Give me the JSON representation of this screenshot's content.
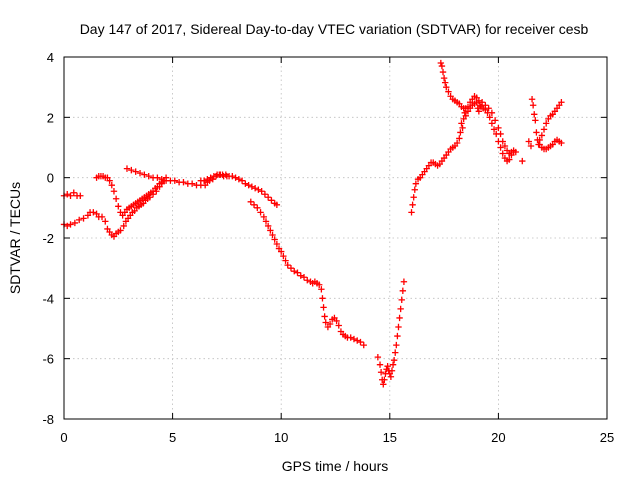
{
  "chart_data": {
    "type": "scatter",
    "title": "Day 147 of 2017, Sidereal Day-to-day VTEC variation (SDTVAR) for receiver cesb",
    "xlabel": "GPS time / hours",
    "ylabel": "SDTVAR / TECUs",
    "xlim": [
      0,
      25
    ],
    "ylim": [
      -8,
      4
    ],
    "x_ticks": [
      0,
      5,
      10,
      15,
      20,
      25
    ],
    "y_ticks": [
      -8,
      -6,
      -4,
      -2,
      0,
      2,
      4
    ],
    "grid": true,
    "marker": "+",
    "color": "#ff0000",
    "series": [
      {
        "points": [
          [
            0.0,
            -0.6
          ],
          [
            0.15,
            -0.55
          ],
          [
            0.3,
            -0.6
          ],
          [
            0.45,
            -0.5
          ],
          [
            0.6,
            -0.6
          ],
          [
            0.75,
            -0.6
          ],
          [
            0.0,
            -1.55
          ],
          [
            0.15,
            -1.6
          ],
          [
            0.3,
            -1.55
          ],
          [
            0.5,
            -1.5
          ],
          [
            0.7,
            -1.4
          ],
          [
            0.9,
            -1.35
          ],
          [
            1.1,
            -1.25
          ],
          [
            1.2,
            -1.15
          ],
          [
            1.35,
            -1.15
          ],
          [
            1.5,
            -1.2
          ],
          [
            1.6,
            -1.3
          ],
          [
            1.75,
            -1.3
          ],
          [
            1.9,
            -1.45
          ],
          [
            2.0,
            -1.7
          ],
          [
            2.1,
            -1.8
          ],
          [
            2.2,
            -1.9
          ],
          [
            2.3,
            -1.95
          ],
          [
            2.4,
            -1.85
          ],
          [
            2.5,
            -1.8
          ],
          [
            2.6,
            -1.75
          ],
          [
            2.75,
            -1.6
          ],
          [
            2.85,
            -1.45
          ],
          [
            2.95,
            -1.35
          ],
          [
            3.05,
            -1.25
          ],
          [
            3.15,
            -1.15
          ],
          [
            3.25,
            -1.1
          ],
          [
            3.35,
            -1.0
          ],
          [
            3.45,
            -0.95
          ],
          [
            3.55,
            -0.9
          ],
          [
            3.65,
            -0.85
          ],
          [
            3.75,
            -0.75
          ],
          [
            3.85,
            -0.7
          ],
          [
            3.95,
            -0.65
          ],
          [
            4.1,
            -0.55
          ],
          [
            4.25,
            -0.45
          ],
          [
            4.4,
            -0.3
          ],
          [
            4.5,
            -0.2
          ],
          [
            4.6,
            -0.1
          ],
          [
            4.7,
            0.0
          ],
          [
            1.5,
            0.0
          ],
          [
            1.6,
            0.05
          ],
          [
            1.7,
            0.05
          ],
          [
            1.8,
            0.05
          ],
          [
            1.9,
            0.0
          ],
          [
            2.0,
            0.0
          ],
          [
            2.1,
            -0.1
          ],
          [
            2.2,
            -0.25
          ],
          [
            2.3,
            -0.45
          ],
          [
            2.4,
            -0.7
          ],
          [
            2.5,
            -0.95
          ],
          [
            2.6,
            -1.15
          ],
          [
            2.7,
            -1.25
          ],
          [
            2.8,
            -1.15
          ],
          [
            2.9,
            -1.05
          ],
          [
            3.0,
            -1.0
          ],
          [
            3.1,
            -0.95
          ],
          [
            3.2,
            -0.9
          ],
          [
            3.3,
            -0.85
          ],
          [
            3.4,
            -0.8
          ],
          [
            3.5,
            -0.75
          ],
          [
            3.6,
            -0.7
          ],
          [
            3.7,
            -0.65
          ],
          [
            3.8,
            -0.6
          ],
          [
            3.9,
            -0.55
          ],
          [
            4.0,
            -0.5
          ],
          [
            4.1,
            -0.45
          ],
          [
            4.2,
            -0.35
          ],
          [
            4.3,
            -0.3
          ],
          [
            4.4,
            -0.2
          ],
          [
            4.5,
            -0.15
          ],
          [
            2.9,
            0.3
          ],
          [
            3.1,
            0.25
          ],
          [
            3.3,
            0.2
          ],
          [
            3.5,
            0.15
          ],
          [
            3.7,
            0.1
          ],
          [
            3.9,
            0.05
          ],
          [
            4.1,
            0.0
          ],
          [
            4.3,
            0.0
          ],
          [
            4.5,
            -0.05
          ],
          [
            4.7,
            -0.1
          ],
          [
            4.9,
            -0.1
          ],
          [
            5.1,
            -0.1
          ],
          [
            5.3,
            -0.15
          ],
          [
            5.5,
            -0.15
          ],
          [
            5.7,
            -0.2
          ],
          [
            5.9,
            -0.2
          ],
          [
            6.1,
            -0.25
          ],
          [
            6.3,
            -0.25
          ],
          [
            6.5,
            -0.25
          ],
          [
            6.6,
            -0.15
          ],
          [
            6.7,
            -0.1
          ],
          [
            6.85,
            -0.05
          ],
          [
            7.0,
            0.05
          ],
          [
            7.15,
            0.1
          ],
          [
            7.3,
            0.1
          ],
          [
            7.45,
            0.1
          ],
          [
            7.6,
            0.05
          ],
          [
            7.75,
            0.05
          ],
          [
            7.9,
            0.0
          ],
          [
            8.05,
            -0.05
          ],
          [
            8.2,
            -0.1
          ],
          [
            8.35,
            -0.2
          ],
          [
            8.5,
            -0.25
          ],
          [
            8.65,
            -0.3
          ],
          [
            8.8,
            -0.35
          ],
          [
            8.95,
            -0.4
          ],
          [
            9.1,
            -0.45
          ],
          [
            9.25,
            -0.55
          ],
          [
            9.4,
            -0.65
          ],
          [
            9.55,
            -0.75
          ],
          [
            9.7,
            -0.85
          ],
          [
            9.8,
            -0.9
          ],
          [
            6.3,
            -0.1
          ],
          [
            6.45,
            -0.1
          ],
          [
            6.6,
            -0.05
          ],
          [
            6.75,
            0.0
          ],
          [
            6.9,
            0.05
          ],
          [
            7.05,
            0.1
          ],
          [
            7.2,
            0.1
          ],
          [
            7.35,
            0.05
          ],
          [
            7.5,
            0.05
          ],
          [
            8.6,
            -0.8
          ],
          [
            8.75,
            -0.9
          ],
          [
            8.9,
            -1.0
          ],
          [
            9.05,
            -1.15
          ],
          [
            9.2,
            -1.3
          ],
          [
            9.3,
            -1.45
          ],
          [
            9.4,
            -1.6
          ],
          [
            9.5,
            -1.75
          ],
          [
            9.6,
            -1.9
          ],
          [
            9.7,
            -2.05
          ],
          [
            9.8,
            -2.2
          ],
          [
            9.9,
            -2.35
          ],
          [
            10.0,
            -2.45
          ],
          [
            10.1,
            -2.6
          ],
          [
            10.2,
            -2.75
          ],
          [
            10.3,
            -2.9
          ],
          [
            10.45,
            -3.0
          ],
          [
            10.6,
            -3.1
          ],
          [
            10.75,
            -3.15
          ],
          [
            10.9,
            -3.25
          ],
          [
            11.05,
            -3.3
          ],
          [
            11.2,
            -3.4
          ],
          [
            11.35,
            -3.45
          ],
          [
            11.45,
            -3.5
          ],
          [
            11.55,
            -3.45
          ],
          [
            11.65,
            -3.5
          ],
          [
            11.75,
            -3.55
          ],
          [
            11.85,
            -3.7
          ],
          [
            11.9,
            -4.0
          ],
          [
            11.95,
            -4.3
          ],
          [
            12.0,
            -4.6
          ],
          [
            12.05,
            -4.8
          ],
          [
            12.15,
            -4.95
          ],
          [
            12.25,
            -4.85
          ],
          [
            12.35,
            -4.7
          ],
          [
            12.45,
            -4.65
          ],
          [
            12.55,
            -4.75
          ],
          [
            12.65,
            -4.9
          ],
          [
            12.75,
            -5.1
          ],
          [
            12.85,
            -5.2
          ],
          [
            12.95,
            -5.25
          ],
          [
            13.05,
            -5.3
          ],
          [
            13.2,
            -5.3
          ],
          [
            13.35,
            -5.35
          ],
          [
            13.5,
            -5.4
          ],
          [
            13.65,
            -5.45
          ],
          [
            13.8,
            -5.55
          ],
          [
            14.45,
            -5.95
          ],
          [
            14.55,
            -6.2
          ],
          [
            14.6,
            -6.45
          ],
          [
            14.65,
            -6.7
          ],
          [
            14.7,
            -6.85
          ],
          [
            14.75,
            -6.7
          ],
          [
            14.8,
            -6.5
          ],
          [
            14.85,
            -6.35
          ],
          [
            14.9,
            -6.25
          ],
          [
            14.95,
            -6.4
          ],
          [
            15.0,
            -6.5
          ],
          [
            15.05,
            -6.6
          ],
          [
            15.1,
            -6.4
          ],
          [
            15.15,
            -6.2
          ],
          [
            15.2,
            -6.05
          ],
          [
            15.25,
            -5.8
          ],
          [
            15.3,
            -5.55
          ],
          [
            15.35,
            -5.25
          ],
          [
            15.4,
            -4.95
          ],
          [
            15.45,
            -4.65
          ],
          [
            15.5,
            -4.35
          ],
          [
            15.55,
            -4.05
          ],
          [
            15.6,
            -3.75
          ],
          [
            15.65,
            -3.45
          ],
          [
            16.0,
            -1.15
          ],
          [
            16.05,
            -0.9
          ],
          [
            16.1,
            -0.65
          ],
          [
            16.15,
            -0.4
          ],
          [
            16.2,
            -0.2
          ],
          [
            16.3,
            -0.05
          ],
          [
            16.4,
            0.0
          ],
          [
            16.5,
            0.1
          ],
          [
            16.6,
            0.2
          ],
          [
            16.7,
            0.3
          ],
          [
            16.8,
            0.4
          ],
          [
            16.9,
            0.5
          ],
          [
            17.0,
            0.5
          ],
          [
            17.1,
            0.45
          ],
          [
            17.2,
            0.4
          ],
          [
            17.3,
            0.45
          ],
          [
            17.4,
            0.55
          ],
          [
            17.5,
            0.65
          ],
          [
            17.6,
            0.75
          ],
          [
            17.7,
            0.85
          ],
          [
            17.8,
            0.95
          ],
          [
            17.9,
            1.0
          ],
          [
            18.0,
            1.05
          ],
          [
            18.1,
            1.15
          ],
          [
            18.2,
            1.3
          ],
          [
            18.25,
            1.5
          ],
          [
            18.3,
            1.8
          ],
          [
            18.35,
            1.65
          ],
          [
            18.4,
            1.95
          ],
          [
            18.45,
            2.15
          ],
          [
            18.5,
            2.05
          ],
          [
            18.6,
            2.2
          ],
          [
            18.7,
            2.3
          ],
          [
            18.8,
            2.4
          ],
          [
            18.9,
            2.45
          ],
          [
            19.0,
            2.5
          ],
          [
            19.05,
            2.3
          ],
          [
            19.1,
            2.2
          ],
          [
            19.15,
            2.4
          ],
          [
            19.2,
            2.35
          ],
          [
            19.3,
            2.3
          ],
          [
            19.4,
            2.25
          ],
          [
            19.5,
            2.15
          ],
          [
            19.6,
            2.0
          ],
          [
            19.7,
            1.8
          ],
          [
            19.8,
            1.6
          ],
          [
            19.9,
            1.45
          ],
          [
            20.0,
            1.2
          ],
          [
            20.1,
            1.0
          ],
          [
            20.2,
            0.8
          ],
          [
            20.3,
            0.65
          ],
          [
            20.4,
            0.55
          ],
          [
            20.5,
            0.6
          ],
          [
            20.6,
            0.75
          ],
          [
            20.7,
            0.85
          ],
          [
            20.8,
            0.85
          ],
          [
            17.35,
            3.8
          ],
          [
            17.4,
            3.7
          ],
          [
            17.45,
            3.5
          ],
          [
            17.5,
            3.3
          ],
          [
            17.55,
            3.15
          ],
          [
            17.6,
            3.0
          ],
          [
            17.7,
            2.85
          ],
          [
            17.8,
            2.7
          ],
          [
            17.9,
            2.6
          ],
          [
            18.0,
            2.55
          ],
          [
            18.1,
            2.5
          ],
          [
            18.2,
            2.45
          ],
          [
            18.3,
            2.35
          ],
          [
            18.4,
            2.3
          ],
          [
            18.5,
            2.3
          ],
          [
            18.6,
            2.35
          ],
          [
            18.7,
            2.5
          ],
          [
            18.8,
            2.6
          ],
          [
            18.9,
            2.7
          ],
          [
            19.0,
            2.65
          ],
          [
            19.1,
            2.55
          ],
          [
            19.25,
            2.5
          ],
          [
            19.4,
            2.4
          ],
          [
            19.55,
            2.3
          ],
          [
            19.7,
            2.15
          ],
          [
            19.85,
            1.9
          ],
          [
            20.0,
            1.65
          ],
          [
            20.1,
            1.45
          ],
          [
            20.2,
            1.2
          ],
          [
            20.3,
            1.05
          ],
          [
            20.4,
            0.9
          ],
          [
            20.5,
            0.8
          ],
          [
            20.6,
            0.85
          ],
          [
            20.7,
            0.9
          ],
          [
            21.1,
            0.55
          ],
          [
            21.4,
            1.2
          ],
          [
            21.5,
            1.05
          ],
          [
            21.55,
            2.6
          ],
          [
            21.6,
            2.4
          ],
          [
            21.65,
            2.1
          ],
          [
            21.7,
            1.9
          ],
          [
            21.75,
            1.5
          ],
          [
            21.8,
            1.25
          ],
          [
            21.85,
            1.1
          ],
          [
            21.9,
            1.25
          ],
          [
            22.0,
            1.4
          ],
          [
            22.1,
            1.6
          ],
          [
            22.2,
            1.8
          ],
          [
            22.3,
            1.95
          ],
          [
            22.4,
            2.05
          ],
          [
            22.5,
            2.1
          ],
          [
            22.6,
            2.2
          ],
          [
            22.7,
            2.3
          ],
          [
            22.8,
            2.4
          ],
          [
            22.9,
            2.5
          ],
          [
            21.9,
            1.1
          ],
          [
            22.0,
            1.0
          ],
          [
            22.1,
            0.95
          ],
          [
            22.2,
            0.95
          ],
          [
            22.3,
            1.0
          ],
          [
            22.4,
            1.05
          ],
          [
            22.5,
            1.1
          ],
          [
            22.6,
            1.2
          ],
          [
            22.7,
            1.25
          ],
          [
            22.8,
            1.2
          ],
          [
            22.9,
            1.15
          ]
        ]
      }
    ]
  }
}
